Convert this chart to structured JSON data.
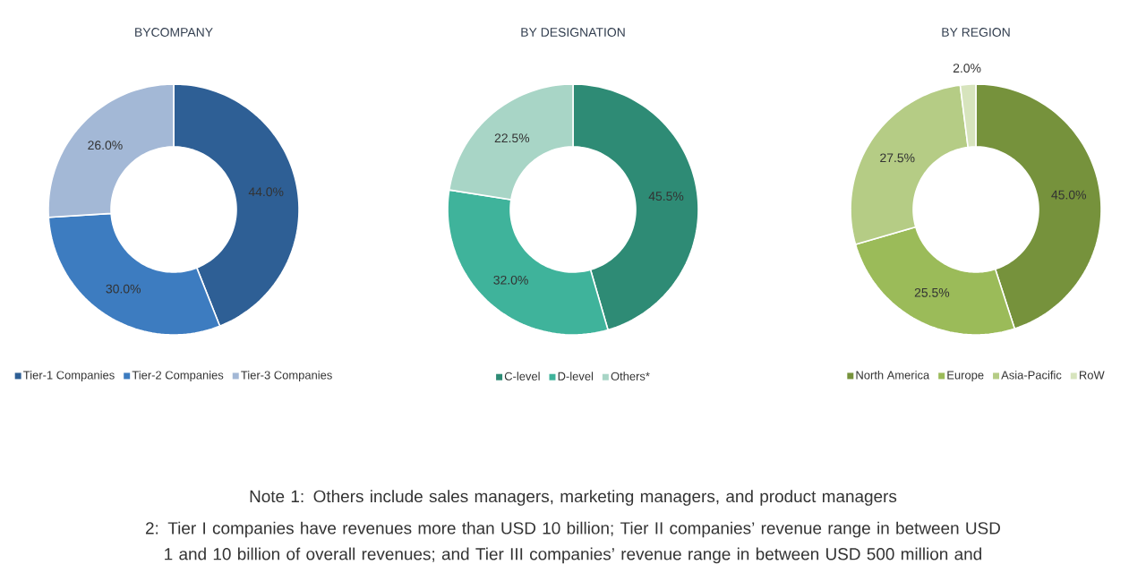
{
  "chart_data": [
    {
      "type": "donut",
      "title": "BYCOMPANY",
      "categories": [
        "Tier-1 Companies",
        "Tier-2 Companies",
        "Tier-3 Companies"
      ],
      "values": [
        44.0,
        30.0,
        26.0
      ],
      "value_labels": [
        "44.0%",
        "30.0%",
        "26.0%"
      ],
      "colors": [
        "#2e5f95",
        "#3d7cc0",
        "#a3b8d6"
      ],
      "legend": "bottom",
      "annotations": [
        "Note 1: Others include sales managers, marketing managers, and product managers",
        "2: Tier I companies have revenues more than USD 10 billion; Tier II companies’ revenue range in between USD 1 and 10 billion of overall revenues; and Tier III companies’ revenue range in between USD 500 million and"
      ]
    },
    {
      "type": "donut",
      "title": "BY DESIGNATION",
      "categories": [
        "C-level",
        "D-level",
        "Others*"
      ],
      "values": [
        45.5,
        32.0,
        22.5
      ],
      "value_labels": [
        "45.5%",
        "32.0%",
        "22.5%"
      ],
      "colors": [
        "#2e8b75",
        "#3fb39b",
        "#a8d5c6"
      ],
      "legend": "bottom"
    },
    {
      "type": "donut",
      "title": "BY REGION",
      "categories": [
        "North America",
        "Europe",
        "Asia-Pacific",
        "RoW"
      ],
      "values": [
        45.0,
        25.5,
        27.5,
        2.0
      ],
      "value_labels": [
        "45.0%",
        "25.5%",
        "27.5%",
        "2.0%"
      ],
      "colors": [
        "#76923c",
        "#9bbb59",
        "#b5cc85",
        "#d7e4bd"
      ],
      "legend": "bottom"
    }
  ]
}
